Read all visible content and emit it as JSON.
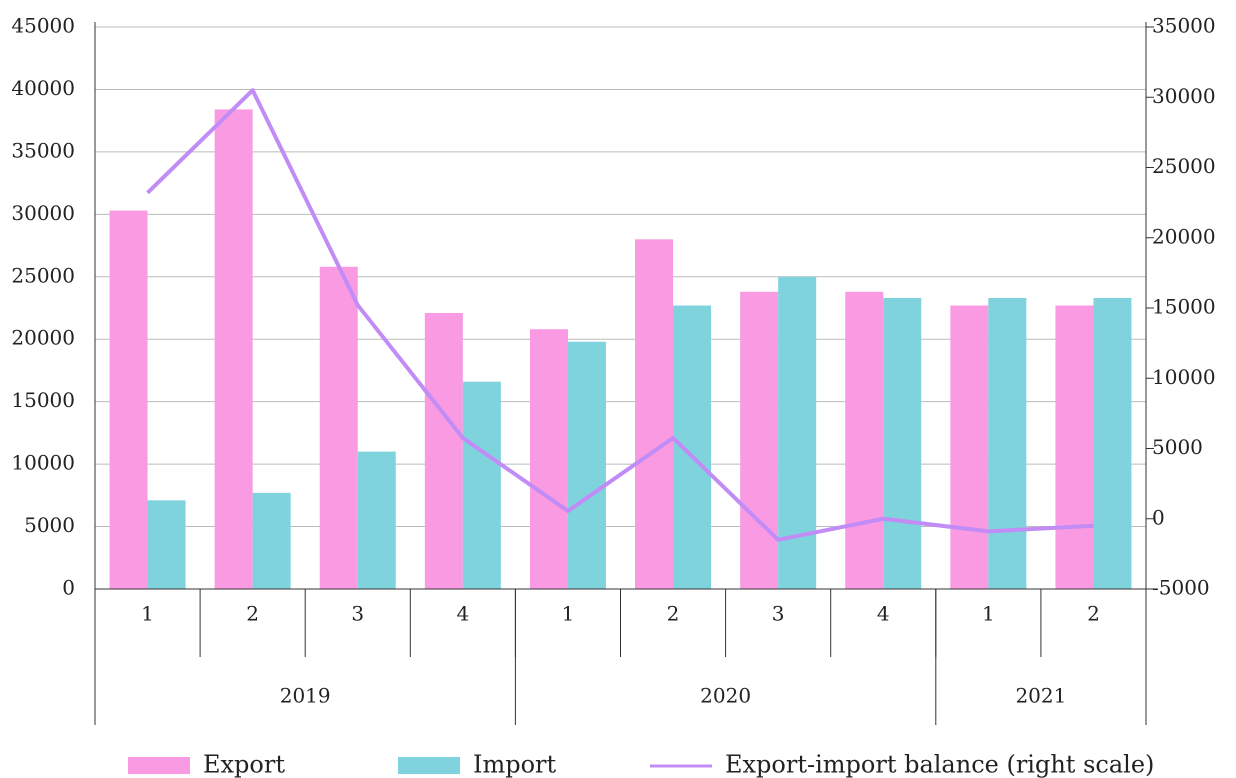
{
  "chart_data": {
    "type": "bar",
    "categories": [
      "1",
      "2",
      "3",
      "4",
      "1",
      "2",
      "3",
      "4",
      "1",
      "2"
    ],
    "category_groups": [
      "2019",
      "2019",
      "2019",
      "2019",
      "2020",
      "2020",
      "2020",
      "2020",
      "2021",
      "2021"
    ],
    "series": [
      {
        "name": "Export",
        "color": "#f99ae3",
        "values": [
          30300,
          38400,
          25800,
          22100,
          20800,
          28000,
          23800,
          23800,
          22700,
          22700
        ]
      },
      {
        "name": "Import",
        "color": "#7ed3dc",
        "values": [
          7100,
          7700,
          11000,
          16600,
          19800,
          22700,
          25000,
          23300,
          23300,
          23300
        ]
      },
      {
        "name": "Export-import balance (right scale)",
        "color": "#c18cf5",
        "type": "line",
        "axis": "y2",
        "values": [
          23200,
          30500,
          15200,
          5750,
          550,
          5750,
          -1500,
          0,
          -900,
          -500
        ]
      }
    ],
    "ylim": [
      0,
      45000
    ],
    "yticks": [
      0,
      5000,
      10000,
      15000,
      20000,
      25000,
      30000,
      35000,
      40000,
      45000
    ],
    "y2lim": [
      -5000,
      35000
    ],
    "y2ticks": [
      -5000,
      0,
      5000,
      10000,
      15000,
      20000,
      25000,
      30000,
      35000
    ],
    "grid": true,
    "legend": "bottom"
  }
}
